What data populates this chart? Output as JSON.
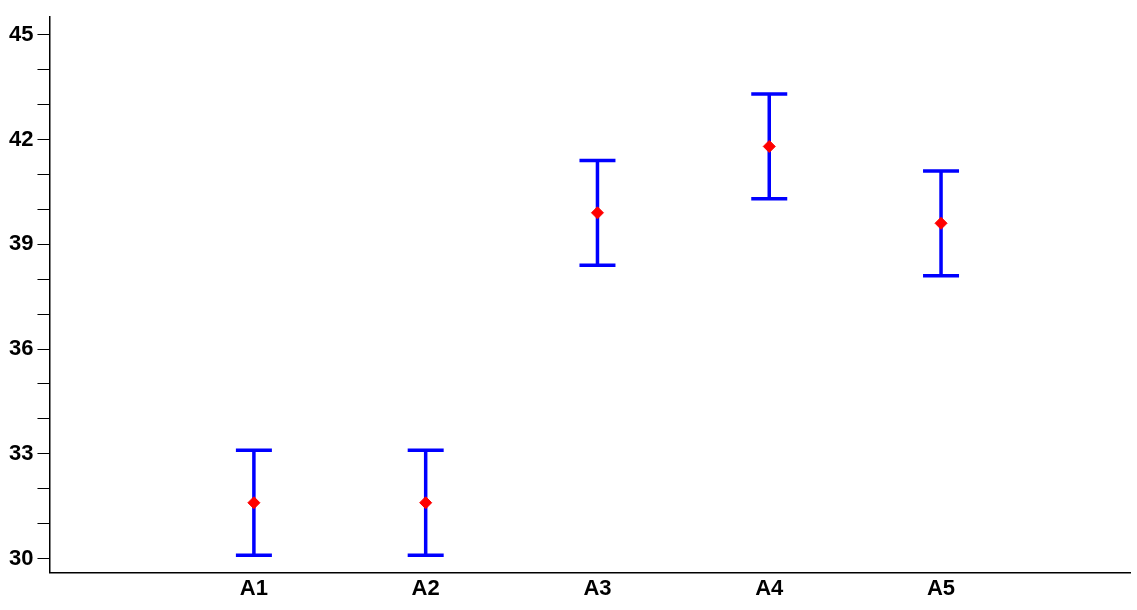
{
  "chart_data": {
    "type": "scatter",
    "categories": [
      "A1",
      "A2",
      "A3",
      "A4",
      "A5"
    ],
    "series": [
      {
        "color": "#ff0000",
        "values": [
          31.6,
          31.6,
          39.9,
          41.8,
          39.6
        ],
        "errors": [
          1.5,
          1.5,
          1.5,
          1.5,
          1.5
        ]
      }
    ],
    "ylim": [
      29.6,
      45.5
    ],
    "yticks": [
      30,
      {
        "value": 31,
        "label": null
      },
      {
        "value": 32,
        "label": null
      },
      33,
      {
        "value": 34,
        "label": null
      },
      {
        "value": 35,
        "label": null
      },
      36,
      {
        "value": 37,
        "label": null
      },
      {
        "value": 38,
        "label": null
      },
      39,
      {
        "value": 40,
        "label": null
      },
      {
        "value": 41,
        "label": null
      },
      42,
      {
        "value": 43,
        "label": null
      },
      {
        "value": 44,
        "label": null
      },
      45
    ],
    "marker": "diamond",
    "grid": false,
    "legend": false
  }
}
